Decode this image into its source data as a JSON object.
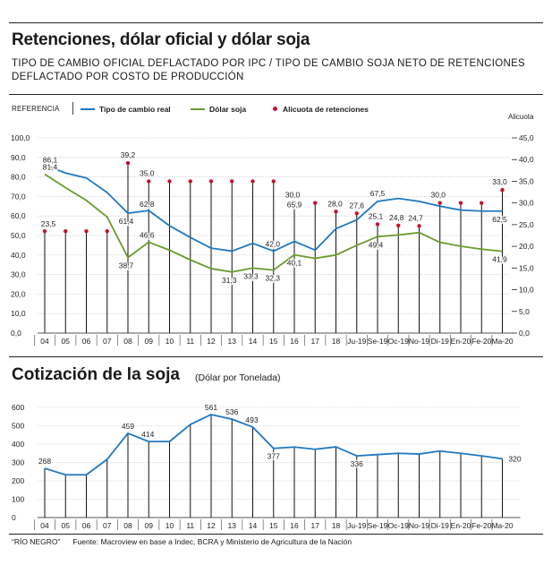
{
  "header": {
    "title": "Retenciones, dólar oficial y dólar soja",
    "subtitle": "TIPO DE CAMBIO OFICIAL DEFLACTADO POR IPC / TIPO DE CAMBIO SOJA NETO DE RETENCIONES DEFLACTADO POR COSTO DE PRODUCCIÓN"
  },
  "legend": {
    "reference_label": "REFERENCIA",
    "items": [
      {
        "label": "Tipo de cambio real",
        "color": "#1f78c1"
      },
      {
        "label": "Dólar soja",
        "color": "#6a9a2b"
      },
      {
        "label": "Alicuota de retenciones",
        "color": "#c8102e"
      }
    ]
  },
  "section2": {
    "title": "Cotización de la soja",
    "subtitle": "(Dólar por Tonelada)"
  },
  "footer": {
    "credit": "“RÍO NEGRO”",
    "source": "Fuente: Macroview en base a Indec, BCRA y Ministerio de Agricultura de la Nación"
  },
  "chart_data": [
    {
      "type": "line",
      "title": "Retenciones, dólar oficial y dólar soja",
      "y2_title": "Alicuota",
      "categories": [
        "04",
        "05",
        "06",
        "07",
        "08",
        "09",
        "10",
        "11",
        "12",
        "13",
        "14",
        "15",
        "16",
        "17",
        "18",
        "Ju-19",
        "Se-19",
        "Oc-19",
        "No-19",
        "Di-19",
        "En-20",
        "Fe-20",
        "Ma-20"
      ],
      "ylim": [
        0,
        100
      ],
      "yticks": [
        "100,0",
        "90,0",
        "80,0",
        "70,0",
        "60,0",
        "50,0",
        "40,0",
        "30,0",
        "20,0",
        "10,0",
        "0,0"
      ],
      "y2lim": [
        0,
        45
      ],
      "y2ticks": [
        "45,0",
        "40,0",
        "35,0",
        "30,0",
        "25,0",
        "20,0",
        "15,0",
        "10,0",
        "5,0",
        "0,0"
      ],
      "series": [
        {
          "name": "Tipo de cambio real",
          "color": "#1f78c1",
          "x": [
            0,
            1,
            2,
            3,
            4,
            5,
            6,
            7,
            8,
            9,
            10,
            11,
            12,
            13,
            14,
            15,
            16,
            17,
            18,
            19,
            20,
            21,
            22
          ],
          "values": [
            86.1,
            82,
            79.5,
            72,
            61.4,
            62.8,
            55,
            49,
            43.5,
            42,
            46,
            42.0,
            47,
            42.5,
            53.5,
            58,
            67.5,
            69,
            67.5,
            65,
            63,
            62.5,
            62.5
          ],
          "labels": {
            "0": "86,1",
            "4": "61,4",
            "5": "62,8",
            "11": "42,0",
            "16": "67,5",
            "22": "62,5"
          }
        },
        {
          "name": "Dólar soja",
          "color": "#6a9a2b",
          "x": [
            0,
            1,
            2,
            3,
            4,
            5,
            6,
            7,
            8,
            9,
            10,
            11,
            12,
            13,
            14,
            15,
            16,
            17,
            18,
            19,
            20,
            21,
            22
          ],
          "values": [
            81.4,
            74.5,
            68,
            59.5,
            38.7,
            46.6,
            42.5,
            37.5,
            33,
            31.3,
            33.3,
            32.3,
            40.1,
            38.3,
            40,
            45,
            49.4,
            50.3,
            51.5,
            46.5,
            44.5,
            43,
            41.9
          ],
          "labels": {
            "0": "81,4",
            "4": "38,7",
            "5": "46,6",
            "9": "31,3",
            "10": "33,3",
            "11": "32,3",
            "12": "40,1",
            "16": "49,4",
            "22": "41,9"
          }
        }
      ],
      "retenciones": {
        "name": "Alicuota de retenciones",
        "color": "#c8102e",
        "x": [
          0,
          1,
          2,
          3,
          4,
          5,
          6,
          7,
          8,
          9,
          10,
          11,
          12,
          13,
          14,
          15,
          16,
          17,
          18,
          19,
          20,
          21,
          22
        ],
        "values": [
          23.5,
          23.5,
          23.5,
          23.5,
          39.2,
          35.0,
          35,
          35,
          35,
          35,
          35,
          35,
          30.0,
          30,
          28.0,
          27.6,
          25.1,
          24.8,
          24.7,
          30.0,
          30,
          30,
          33.0
        ],
        "labels": {
          "0": "23,5",
          "4": "39,2",
          "5": "35,0",
          "12": "30,0",
          "14": "28,0",
          "15": "27,6",
          "16": "25,1",
          "17": "24,8",
          "18": "24,7",
          "19": "30,0",
          "22": "33,0"
        }
      },
      "extra_labels": [
        {
          "x": 12,
          "y": 65.9,
          "text": "65,9"
        }
      ]
    },
    {
      "type": "line",
      "title": "Cotización de la soja",
      "subtitle": "(Dólar por Tonelada)",
      "categories": [
        "04",
        "05",
        "06",
        "07",
        "08",
        "09",
        "10",
        "11",
        "12",
        "13",
        "14",
        "15",
        "16",
        "17",
        "18",
        "Ju-19",
        "Se-19",
        "Oc-19",
        "No-19",
        "Di-19",
        "En-20",
        "Fe-20",
        "Ma-20"
      ],
      "ylim": [
        0,
        600
      ],
      "yticks": [
        "600",
        "500",
        "400",
        "300",
        "200",
        "100",
        "0"
      ],
      "series": [
        {
          "name": "Cotización de la soja",
          "color": "#1f78c1",
          "x": [
            0,
            1,
            2,
            3,
            4,
            5,
            6,
            7,
            8,
            9,
            10,
            11,
            12,
            13,
            14,
            15,
            16,
            17,
            18,
            19,
            20,
            21,
            22
          ],
          "values": [
            268,
            233,
            233,
            317,
            459,
            414,
            414,
            507,
            561,
            536,
            493,
            377,
            384,
            372,
            385,
            336,
            343,
            350,
            346,
            362,
            350,
            336,
            320
          ],
          "labels": {
            "0": "268",
            "4": "459",
            "5": "414",
            "8": "561",
            "9": "536",
            "10": "493",
            "11": "377",
            "15": "336",
            "22": "320"
          }
        }
      ]
    }
  ]
}
